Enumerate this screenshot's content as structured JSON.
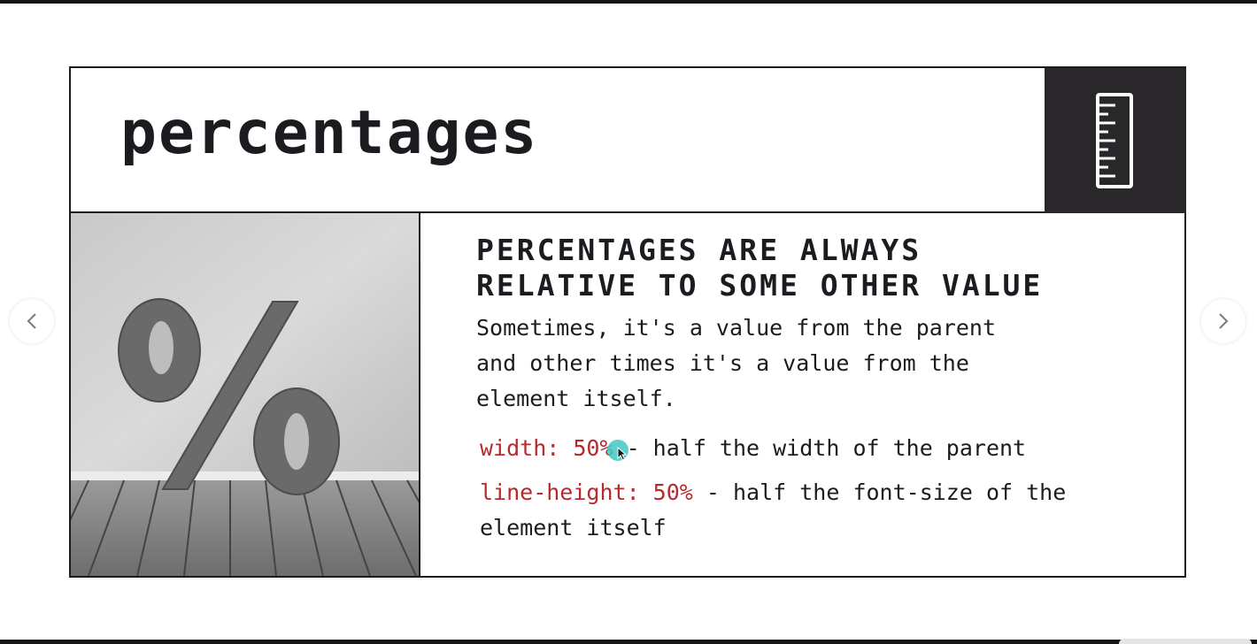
{
  "slide": {
    "title": "percentages",
    "header_icon": "ruler-icon",
    "image_description_icon": "percent-sign-image",
    "headline": "PERCENTAGES ARE ALWAYS\nRELATIVE TO SOME OTHER VALUE",
    "body": "Sometimes, it's a value from the parent\nand other times it's a value from the\nelement itself.",
    "examples": [
      {
        "code": "width: 50%",
        "description": " - half the width of the parent"
      },
      {
        "code": "line-height: 50%",
        "description": " - half the font-size of the element itself"
      }
    ]
  },
  "navigation": {
    "prev_icon": "chevron-left-icon",
    "next_icon": "chevron-right-icon"
  },
  "colors": {
    "text": "#1d1b1f",
    "accent_code": "#b52a2e",
    "icon_block": "#2a272b",
    "cursor_highlight": "#40c8c4"
  }
}
